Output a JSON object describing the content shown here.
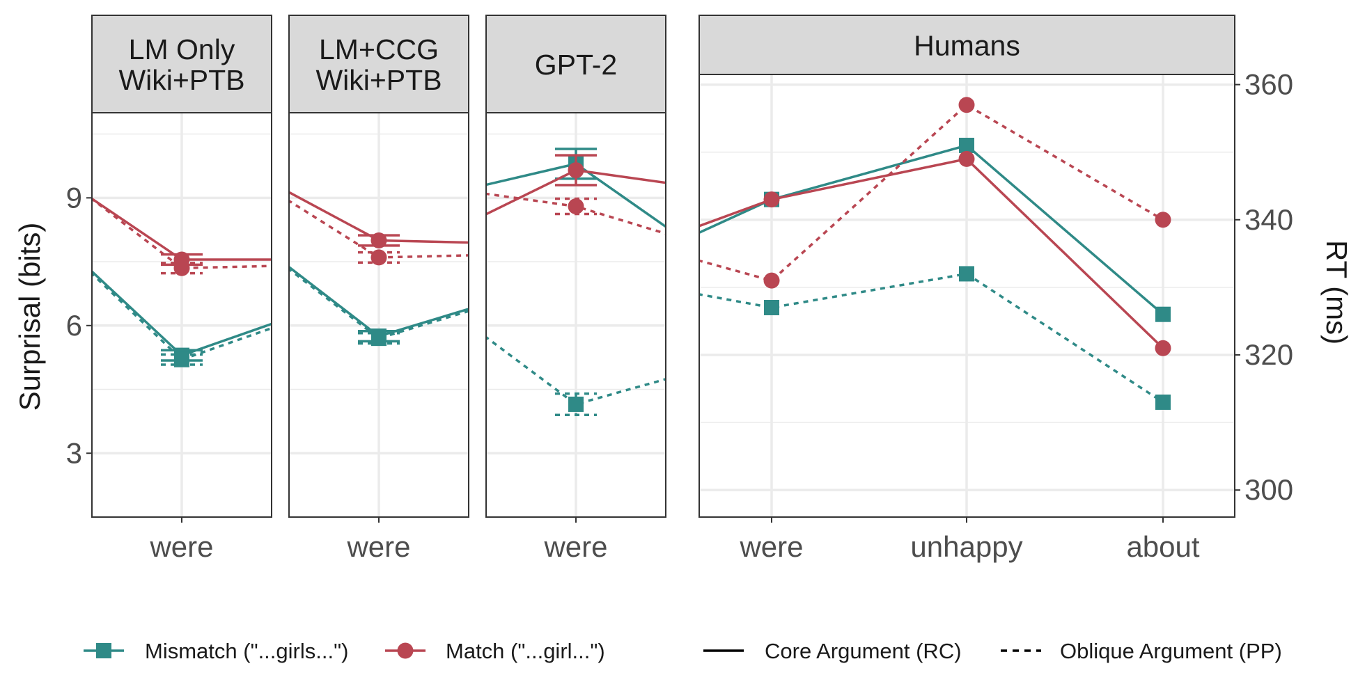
{
  "colors": {
    "mismatch": "#2f8a87",
    "match": "#b94652",
    "grid": "#ebebeb",
    "strip": "#d9d9d9",
    "frame": "#333333",
    "tick_text": "#4d4d4d",
    "text": "#1a1a1a"
  },
  "chart_data": {
    "type": "line",
    "y_left_label": "Surprisal (bits)",
    "y_left_ticks": [
      3,
      6,
      9
    ],
    "y_left_range": [
      1.5,
      11.0
    ],
    "y_right_label": "RT (ms)",
    "y_right_ticks": [
      300,
      320,
      340,
      360
    ],
    "y_right_range": [
      296,
      361.5
    ],
    "legend": {
      "position": "bottom",
      "groups": [
        {
          "key": "mismatch",
          "label": "Mismatch (\"...girls...\")",
          "marker": "square"
        },
        {
          "key": "match",
          "label": "Match (\"...girl...\")",
          "marker": "circle"
        },
        {
          "key": "core",
          "label": "Core Argument (RC)",
          "line": "solid"
        },
        {
          "key": "oblique",
          "label": "Oblique Argument (PP)",
          "line": "dashed"
        }
      ]
    },
    "panels": [
      {
        "strip": [
          "LM Only",
          "Wiki+PTB"
        ],
        "axis": "left",
        "categories": [
          "were"
        ],
        "series": [
          {
            "group": "match",
            "type": "core",
            "values": [
              7.55
            ],
            "error": [
              0.12
            ],
            "prev": 9.0,
            "next": 7.55
          },
          {
            "group": "match",
            "type": "oblique",
            "values": [
              7.35
            ],
            "error": [
              0.12
            ],
            "prev": 9.0,
            "next": 7.4
          },
          {
            "group": "mismatch",
            "type": "core",
            "values": [
              5.3
            ],
            "error": [
              0.12
            ],
            "prev": 7.3,
            "next": 6.05
          },
          {
            "group": "mismatch",
            "type": "oblique",
            "values": [
              5.2
            ],
            "error": [
              0.12
            ],
            "prev": 7.25,
            "next": 5.95
          }
        ]
      },
      {
        "strip": [
          "LM+CCG",
          "Wiki+PTB"
        ],
        "axis": "left",
        "categories": [
          "were"
        ],
        "series": [
          {
            "group": "match",
            "type": "core",
            "values": [
              8.0
            ],
            "error": [
              0.12
            ],
            "prev": 9.15,
            "next": 7.95
          },
          {
            "group": "match",
            "type": "oblique",
            "values": [
              7.6
            ],
            "error": [
              0.12
            ],
            "prev": 8.95,
            "next": 7.65
          },
          {
            "group": "mismatch",
            "type": "core",
            "values": [
              5.75
            ],
            "error": [
              0.12
            ],
            "prev": 7.4,
            "next": 6.4
          },
          {
            "group": "mismatch",
            "type": "oblique",
            "values": [
              5.7
            ],
            "error": [
              0.12
            ],
            "prev": 7.35,
            "next": 6.35
          }
        ]
      },
      {
        "strip": [
          "GPT-2"
        ],
        "axis": "left",
        "categories": [
          "were"
        ],
        "series": [
          {
            "group": "mismatch",
            "type": "core",
            "values": [
              9.8
            ],
            "error": [
              0.35
            ],
            "prev": 9.3,
            "next": 8.3
          },
          {
            "group": "match",
            "type": "core",
            "values": [
              9.65
            ],
            "error": [
              0.35
            ],
            "prev": 8.6,
            "next": 9.35
          },
          {
            "group": "match",
            "type": "oblique",
            "values": [
              8.8
            ],
            "error": [
              0.18
            ],
            "prev": 9.1,
            "next": 8.15
          },
          {
            "group": "mismatch",
            "type": "oblique",
            "values": [
              4.15
            ],
            "error": [
              0.25
            ],
            "prev": 5.75,
            "next": 4.75
          }
        ]
      },
      {
        "strip": [
          "Humans"
        ],
        "axis": "right",
        "categories": [
          "were",
          "unhappy",
          "about"
        ],
        "series": [
          {
            "group": "mismatch",
            "type": "core",
            "values": [
              343,
              351,
              326
            ],
            "prev": 338
          },
          {
            "group": "match",
            "type": "core",
            "values": [
              343,
              349,
              321
            ],
            "prev": 339
          },
          {
            "group": "match",
            "type": "oblique",
            "values": [
              331,
              357,
              340
            ],
            "prev": 334
          },
          {
            "group": "mismatch",
            "type": "oblique",
            "values": [
              327,
              332,
              313
            ],
            "prev": 329
          }
        ]
      }
    ]
  }
}
